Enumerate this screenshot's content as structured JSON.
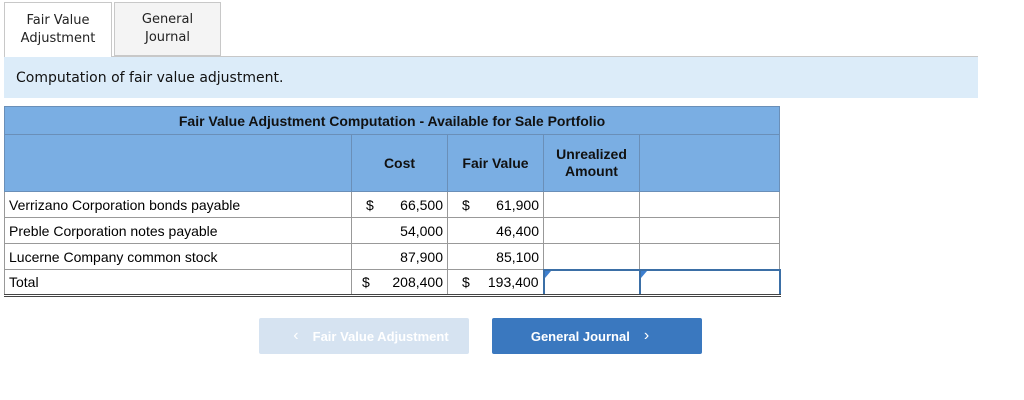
{
  "tabs": [
    {
      "label1": "Fair Value",
      "label2": "Adjustment",
      "active": true
    },
    {
      "label1": "General",
      "label2": "Journal",
      "active": false
    }
  ],
  "instruction": "Computation of fair value adjustment.",
  "table": {
    "title": "Fair Value Adjustment Computation - Available for Sale Portfolio",
    "headers": {
      "cost": "Cost",
      "fair_value": "Fair Value",
      "unrealized1": "Unrealized",
      "unrealized2": "Amount"
    },
    "currency": "$",
    "rows": [
      {
        "label": "Verrizano Corporation bonds payable",
        "cost": "66,500",
        "fair_value": "61,900"
      },
      {
        "label": "Preble Corporation notes payable",
        "cost": "54,000",
        "fair_value": "46,400"
      },
      {
        "label": "Lucerne Company common stock",
        "cost": "87,900",
        "fair_value": "85,100"
      }
    ],
    "total": {
      "label": "Total",
      "cost": "208,400",
      "fair_value": "193,400"
    }
  },
  "nav": {
    "prev_label": "Fair Value Adjustment",
    "next_label": "General Journal"
  },
  "colors": {
    "header": "#7aaee3",
    "band": "#dcecf9",
    "next_button": "#3a78bf",
    "prev_button": "#d6e3f1"
  }
}
